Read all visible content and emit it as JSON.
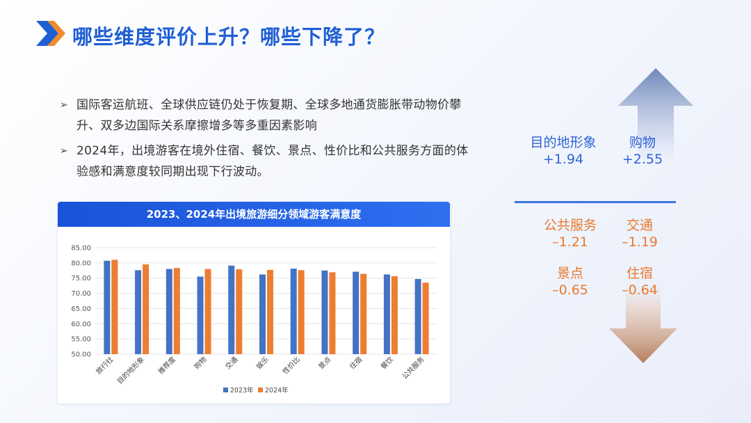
{
  "header": {
    "title": "哪些维度评价上升？哪些下降了？"
  },
  "bullets": [
    {
      "marker": "➢",
      "text": "国际客运航班、全球供应链仍处于恢复期、全球多地通货膨胀带动物价攀升、双多边国际关系摩擦增多等多重因素影响"
    },
    {
      "marker": "➢",
      "text": "2024年，出境游客在境外住宿、餐饮、景点、性价比和公共服务方面的体验感和满意度较同期出现下行波动。"
    }
  ],
  "stats_up": [
    {
      "label": "目的地形象",
      "value": "+1.94"
    },
    {
      "label": "购物",
      "value": "+2.55"
    }
  ],
  "stats_down": [
    {
      "label": "公共服务",
      "value": "–1.21"
    },
    {
      "label": "交通",
      "value": "–1.19"
    },
    {
      "label": "景点",
      "value": "–0.65"
    },
    {
      "label": "住宿",
      "value": "–0.64"
    }
  ],
  "colors": {
    "series_2023": "#4472c4",
    "series_2024": "#ed7d31",
    "accent": "#1f5fd3"
  },
  "chart_data": {
    "type": "bar",
    "title": "2023、2024年出境旅游细分领域游客满意度",
    "categories": [
      "旅行社",
      "目的地形象",
      "推荐度",
      "购物",
      "交通",
      "娱乐",
      "性价比",
      "景点",
      "住宿",
      "餐饮",
      "公共服务"
    ],
    "series": [
      {
        "name": "2023年",
        "values": [
          80.7,
          77.6,
          78.0,
          75.5,
          79.1,
          76.2,
          78.1,
          77.5,
          77.1,
          76.2,
          74.7
        ]
      },
      {
        "name": "2024年",
        "values": [
          81.0,
          79.5,
          78.3,
          78.0,
          77.9,
          77.7,
          77.6,
          76.9,
          76.4,
          75.6,
          73.5
        ]
      }
    ],
    "ylim": [
      50,
      85
    ],
    "yticks": [
      "85.00",
      "80.00",
      "75.00",
      "70.00",
      "65.00",
      "60.00",
      "55.00",
      "50.00"
    ],
    "grid": true,
    "legend": "bottom"
  }
}
